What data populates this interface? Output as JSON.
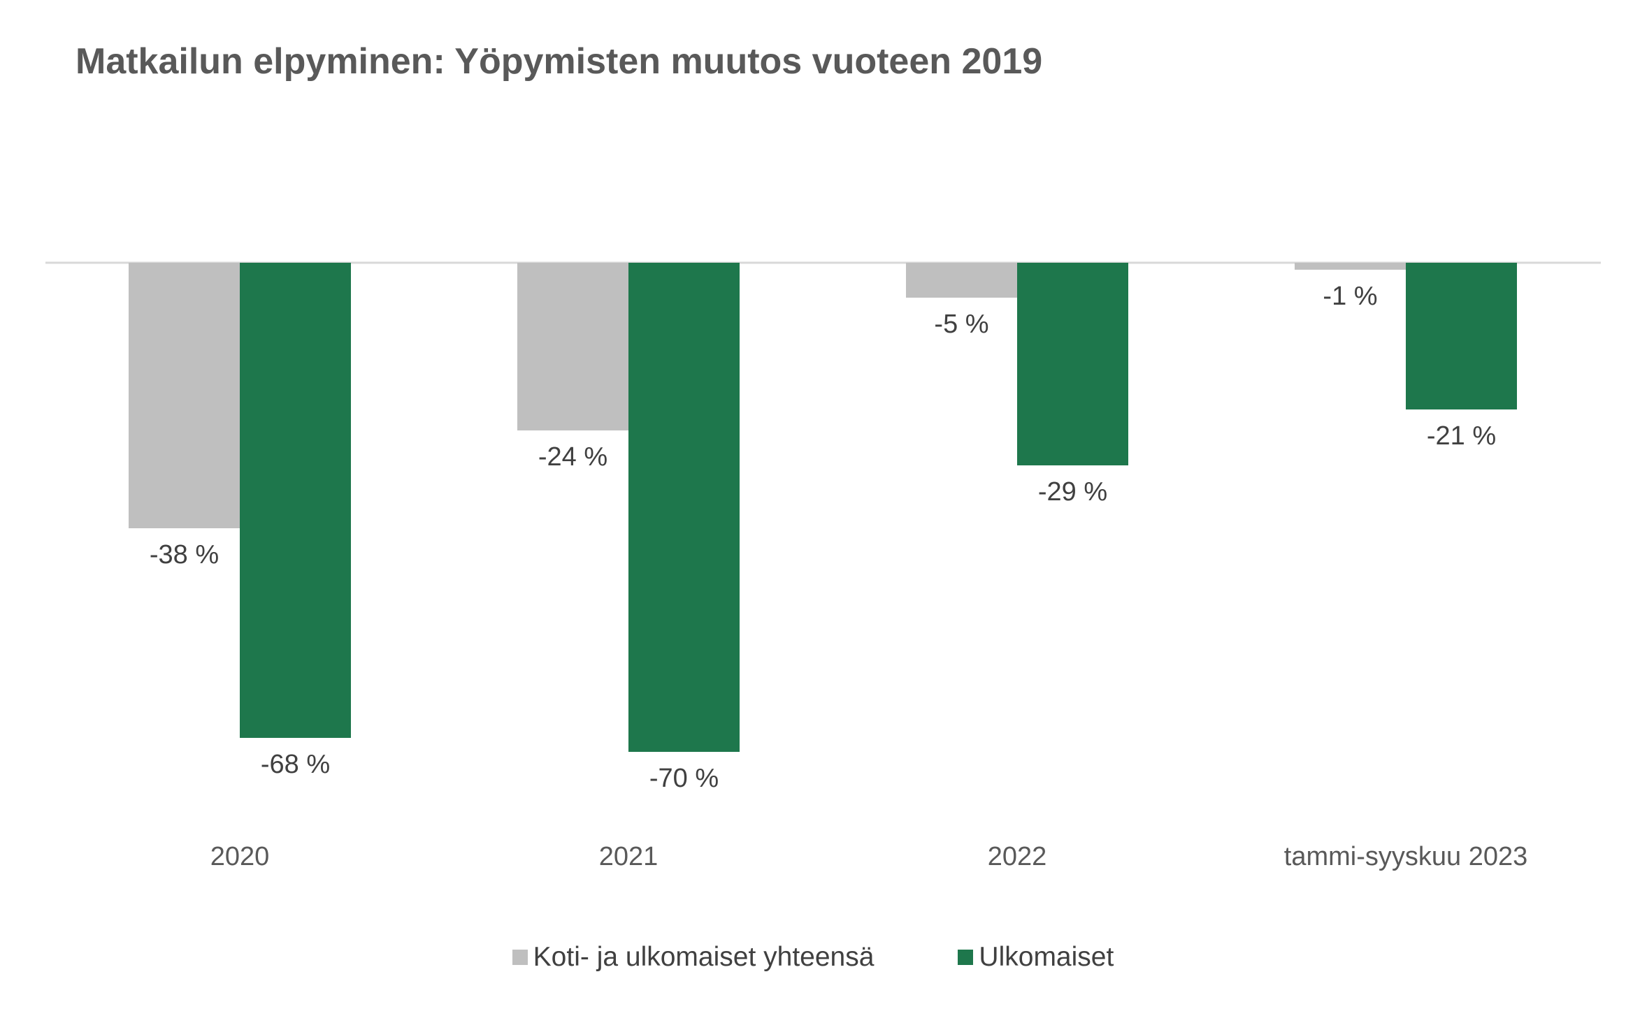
{
  "chart_data": {
    "type": "bar",
    "title": "Matkailun elpyminen: Yöpymisten muutos vuoteen 2019",
    "categories": [
      "2020",
      "2021",
      "2022",
      "tammi-syyskuu 2023"
    ],
    "series": [
      {
        "name": "Koti- ja ulkomaiset yhteensä",
        "values": [
          -38,
          -24,
          -5,
          -1
        ],
        "labels": [
          "-38 %",
          "-24 %",
          "-5 %",
          "-1 %"
        ],
        "color": "#bfbfbf"
      },
      {
        "name": "Ulkomaiset",
        "values": [
          -68,
          -70,
          -29,
          -21
        ],
        "labels": [
          "-68 %",
          "-70 %",
          "-29 %",
          "-21 %"
        ],
        "color": "#1e774c"
      }
    ],
    "ylim": [
      -80,
      0
    ],
    "grid": false,
    "legend_position": "bottom"
  }
}
